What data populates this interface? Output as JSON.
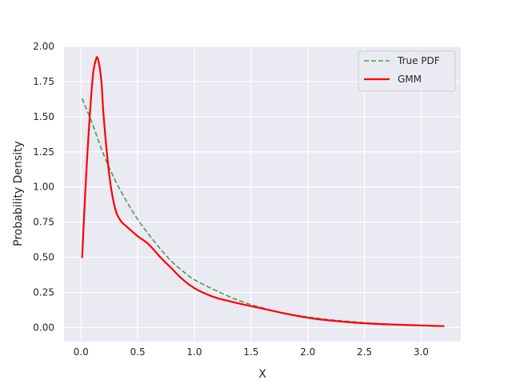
{
  "chart_data": {
    "type": "line",
    "title": "",
    "xlabel": "X",
    "ylabel": "Probability Density",
    "xlim": [
      -0.15,
      3.35
    ],
    "ylim": [
      -0.1,
      2.0
    ],
    "xticks": [
      0.0,
      0.5,
      1.0,
      1.5,
      2.0,
      2.5,
      3.0
    ],
    "xtick_labels": [
      "0.0",
      "0.5",
      "1.0",
      "1.5",
      "2.0",
      "2.5",
      "3.0"
    ],
    "yticks": [
      0.0,
      0.25,
      0.5,
      0.75,
      1.0,
      1.25,
      1.5,
      1.75,
      2.0
    ],
    "ytick_labels": [
      "0.00",
      "0.25",
      "0.50",
      "0.75",
      "1.00",
      "1.25",
      "1.50",
      "1.75",
      "2.00"
    ],
    "grid": true,
    "legend_position": "top-right",
    "series": [
      {
        "name": "True PDF",
        "color": "#4c9a4c",
        "style": "dashed",
        "x": [
          0.01,
          0.1,
          0.2,
          0.3,
          0.4,
          0.5,
          0.6,
          0.7,
          0.8,
          0.9,
          1.0,
          1.2,
          1.4,
          1.6,
          1.8,
          2.0,
          2.2,
          2.5,
          2.8,
          3.0,
          3.2
        ],
        "y": [
          1.63,
          1.45,
          1.23,
          1.05,
          0.9,
          0.77,
          0.66,
          0.56,
          0.47,
          0.4,
          0.34,
          0.26,
          0.19,
          0.14,
          0.1,
          0.075,
          0.055,
          0.035,
          0.02,
          0.015,
          0.01
        ]
      },
      {
        "name": "GMM",
        "color": "#ff0000",
        "style": "solid",
        "x": [
          0.01,
          0.05,
          0.1,
          0.13,
          0.15,
          0.18,
          0.2,
          0.25,
          0.3,
          0.35,
          0.4,
          0.5,
          0.6,
          0.7,
          0.8,
          0.9,
          1.0,
          1.1,
          1.2,
          1.4,
          1.6,
          1.8,
          2.0,
          2.2,
          2.5,
          2.8,
          3.0,
          3.2
        ],
        "y": [
          0.5,
          1.15,
          1.75,
          1.9,
          1.91,
          1.75,
          1.5,
          1.08,
          0.85,
          0.76,
          0.72,
          0.65,
          0.59,
          0.5,
          0.42,
          0.34,
          0.28,
          0.24,
          0.21,
          0.17,
          0.135,
          0.1,
          0.07,
          0.05,
          0.03,
          0.02,
          0.015,
          0.01
        ]
      }
    ]
  }
}
